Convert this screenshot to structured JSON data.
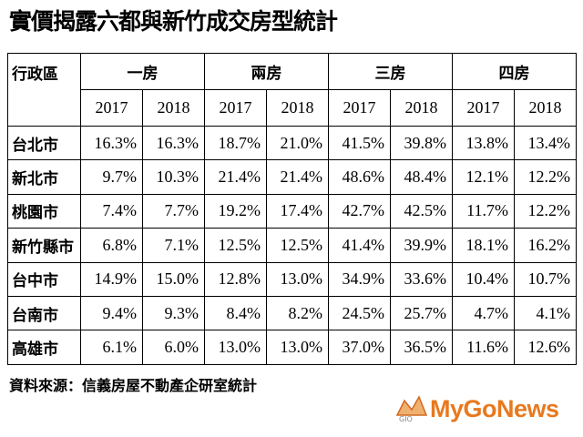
{
  "header": {
    "title": "實價揭露六都與新竹成交房型統計"
  },
  "table": {
    "corner": "行政區",
    "groups": [
      "一房",
      "兩房",
      "三房",
      "四房"
    ],
    "years": [
      "2017",
      "2018",
      "2017",
      "2018",
      "2017",
      "2018",
      "2017",
      "2018"
    ],
    "rows": [
      [
        "台北市",
        "16.3%",
        "16.3%",
        "18.7%",
        "21.0%",
        "41.5%",
        "39.8%",
        "13.8%",
        "13.4%"
      ],
      [
        "新北市",
        "9.7%",
        "10.3%",
        "21.4%",
        "21.4%",
        "48.6%",
        "48.4%",
        "12.1%",
        "12.2%"
      ],
      [
        "桃園市",
        "7.4%",
        "7.7%",
        "19.2%",
        "17.4%",
        "42.7%",
        "42.5%",
        "11.7%",
        "12.2%"
      ],
      [
        "新竹縣市",
        "6.8%",
        "7.1%",
        "12.5%",
        "12.5%",
        "41.4%",
        "39.9%",
        "18.1%",
        "16.2%"
      ],
      [
        "台中市",
        "14.9%",
        "15.0%",
        "12.8%",
        "13.0%",
        "34.9%",
        "33.6%",
        "10.4%",
        "10.7%"
      ],
      [
        "台南市",
        "9.4%",
        "9.3%",
        "8.4%",
        "8.2%",
        "24.5%",
        "25.7%",
        "4.7%",
        "4.1%"
      ],
      [
        "高雄市",
        "6.1%",
        "6.0%",
        "13.0%",
        "13.0%",
        "37.0%",
        "36.5%",
        "11.6%",
        "12.6%"
      ]
    ]
  },
  "footer": {
    "source": "資料來源：信義房屋不動產企研室統計"
  },
  "logo": {
    "mark": "GIO",
    "text": "MyGoNews"
  }
}
